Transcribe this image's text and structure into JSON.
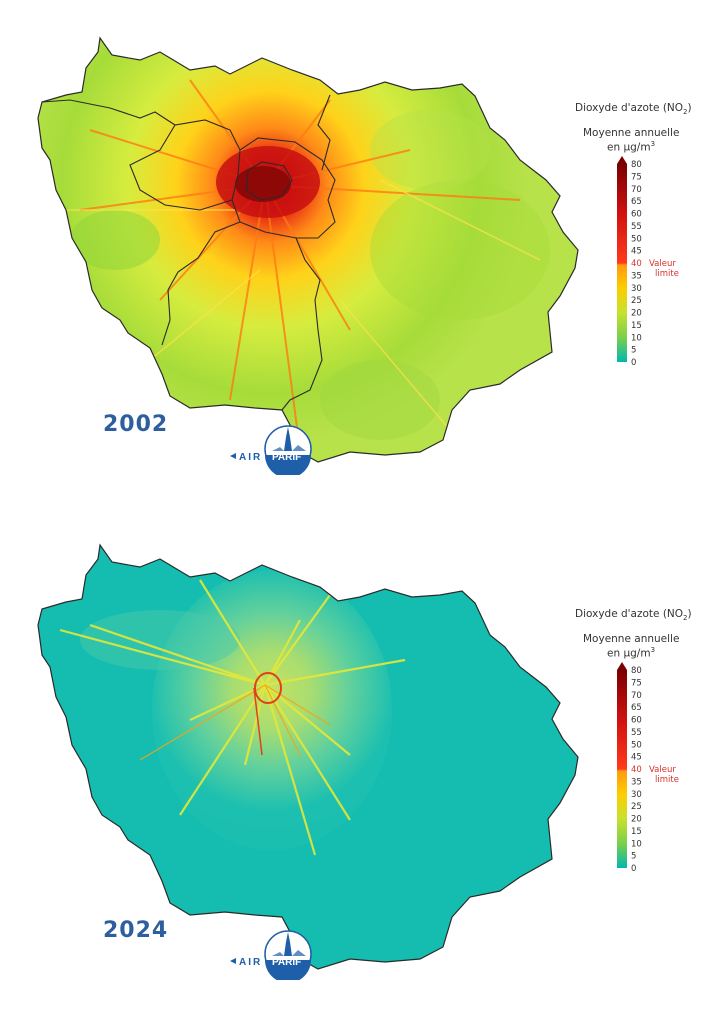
{
  "panels": [
    {
      "year": "2002",
      "palette": [
        "#e9f36a",
        "#c8ea4a",
        "#8fd63a",
        "#ffd21a",
        "#ff9a18",
        "#f04a13",
        "#c81010",
        "#9a0a0a"
      ]
    },
    {
      "year": "2024",
      "palette": [
        "#22c2b0",
        "#4fd0a8",
        "#8fdc7a",
        "#cfe658",
        "#f3d92a",
        "#f08a18",
        "#d8301a",
        "#9a0a0a"
      ]
    }
  ],
  "legend": {
    "title_prefix": "Dioxyde d'azote (NO",
    "title_sub": "2",
    "title_suffix": ")",
    "subtitle_1": "Moyenne annuelle",
    "subtitle_2_prefix": "en µg/m",
    "subtitle_2_sup": "3",
    "ticks": [
      "80",
      "75",
      "70",
      "65",
      "60",
      "55",
      "50",
      "45",
      "40",
      "35",
      "30",
      "25",
      "20",
      "15",
      "10",
      "5",
      "0"
    ],
    "limit_label_1": "Valeur",
    "limit_label_2": "limite",
    "colors": {
      "0": "#00b8b0",
      "10": "#7ccf4a",
      "20": "#c7e12e",
      "30": "#ffcc00",
      "40": "#ff3b1a",
      "60": "#d01010",
      "80": "#7a0000"
    }
  },
  "logo": {
    "left": "AIR",
    "right": "PARIF"
  }
}
